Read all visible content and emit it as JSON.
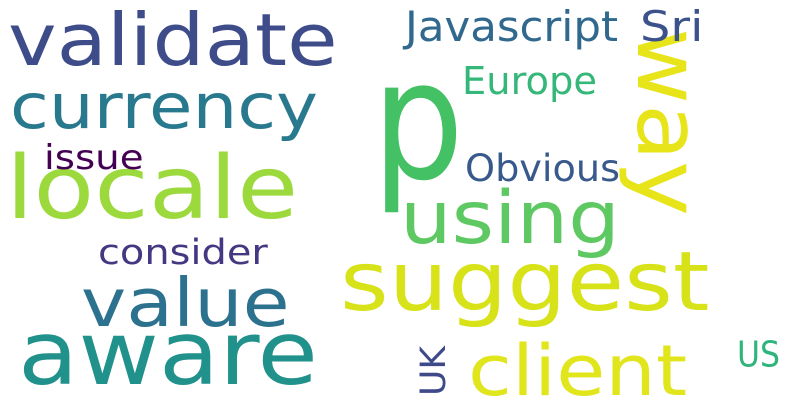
{
  "word_cloud": {
    "words": [
      {
        "key": "p",
        "text": "p",
        "color": "#44c065"
      },
      {
        "key": "validate",
        "text": "validate",
        "color": "#3e4c8a"
      },
      {
        "key": "currency",
        "text": "currency",
        "color": "#29798e"
      },
      {
        "key": "locale",
        "text": "locale",
        "color": "#9bd93c"
      },
      {
        "key": "suggest",
        "text": "suggest",
        "color": "#d8e219"
      },
      {
        "key": "aware",
        "text": "aware",
        "color": "#21918c"
      },
      {
        "key": "value",
        "text": "value",
        "color": "#2c728e"
      },
      {
        "key": "using",
        "text": "using",
        "color": "#5ec962"
      },
      {
        "key": "client",
        "text": "client",
        "color": "#e1e51b"
      },
      {
        "key": "way",
        "text": "way",
        "color": "#e7e419"
      },
      {
        "key": "javascript",
        "text": "Javascript",
        "color": "#31688e"
      },
      {
        "key": "sri",
        "text": "Sri",
        "color": "#3b528b"
      },
      {
        "key": "europe",
        "text": "Europe",
        "color": "#35b779"
      },
      {
        "key": "obvious",
        "text": "Obvious",
        "color": "#38598c"
      },
      {
        "key": "issue",
        "text": "issue",
        "color": "#440154"
      },
      {
        "key": "consider",
        "text": "consider",
        "color": "#453781"
      },
      {
        "key": "uk",
        "text": "UK",
        "color": "#3e4989"
      },
      {
        "key": "us",
        "text": "US",
        "color": "#2fb47c"
      }
    ]
  }
}
